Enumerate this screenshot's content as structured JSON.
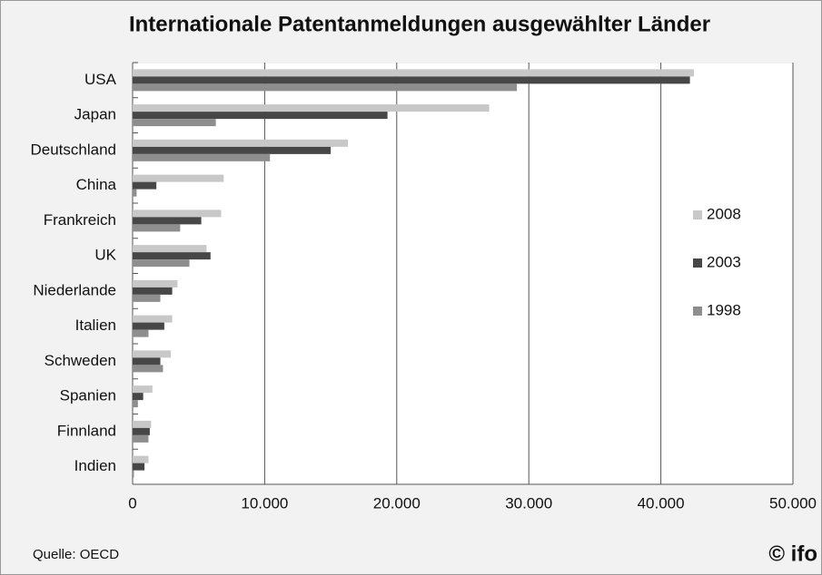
{
  "chart_data": {
    "type": "hbar",
    "title": "Internationale Patentanmeldungen ausgewählter Länder",
    "source": "Quelle: OECD",
    "logo": "© ifo",
    "categories": [
      "USA",
      "Japan",
      "Deutschland",
      "China",
      "Frankreich",
      "UK",
      "Niederlande",
      "Italien",
      "Schweden",
      "Spanien",
      "Finnland",
      "Indien"
    ],
    "series": [
      {
        "name": "2008",
        "color": "#c8c8c8",
        "values": [
          42500,
          27000,
          16300,
          6900,
          6700,
          5600,
          3400,
          3000,
          2900,
          1500,
          1400,
          1200
        ]
      },
      {
        "name": "2003",
        "color": "#474747",
        "values": [
          42200,
          19300,
          15000,
          1800,
          5200,
          5900,
          3000,
          2400,
          2100,
          800,
          1300,
          900
        ]
      },
      {
        "name": "1998",
        "color": "#8e8e8e",
        "values": [
          29100,
          6300,
          10400,
          300,
          3600,
          4300,
          2100,
          1200,
          2300,
          400,
          1200,
          100
        ]
      }
    ],
    "xlim": [
      0,
      50000
    ],
    "xticks": [
      0,
      {
        "value": 10000,
        "label": "10.000"
      },
      {
        "value": 20000,
        "label": "20.000"
      },
      {
        "value": 30000,
        "label": "30.000"
      },
      {
        "value": 40000,
        "label": "40.000"
      },
      {
        "value": 50000,
        "label": "50.000"
      }
    ],
    "grid": true,
    "legend": "right"
  }
}
